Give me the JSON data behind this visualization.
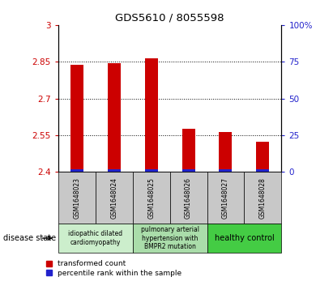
{
  "title": "GDS5610 / 8055598",
  "samples": [
    "GSM1648023",
    "GSM1648024",
    "GSM1648025",
    "GSM1648026",
    "GSM1648027",
    "GSM1648028"
  ],
  "red_values": [
    2.838,
    2.845,
    2.865,
    2.575,
    2.562,
    2.525
  ],
  "blue_pct": [
    2,
    2,
    2,
    2,
    2,
    2
  ],
  "ylim_left": [
    2.4,
    3.0
  ],
  "ylim_right": [
    0,
    100
  ],
  "yticks_left": [
    2.4,
    2.55,
    2.7,
    2.85,
    3.0
  ],
  "ytick_labels_left": [
    "2.4",
    "2.55",
    "2.7",
    "2.85",
    "3"
  ],
  "yticks_right": [
    0,
    25,
    50,
    75,
    100
  ],
  "ytick_labels_right": [
    "0",
    "25",
    "50",
    "75",
    "100%"
  ],
  "hlines": [
    2.55,
    2.7,
    2.85
  ],
  "bar_width": 0.35,
  "red_color": "#cc0000",
  "blue_color": "#2222cc",
  "sample_bg_color": "#c8c8c8",
  "disease_groups": [
    {
      "label": "idiopathic dilated\ncardiomyopathy",
      "start": 0,
      "end": 2,
      "color": "#cceecc"
    },
    {
      "label": "pulmonary arterial\nhypertension with\nBMPR2 mutation",
      "start": 2,
      "end": 4,
      "color": "#aaddaa"
    },
    {
      "label": "healthy control",
      "start": 4,
      "end": 6,
      "color": "#44cc44"
    }
  ],
  "legend_red_label": "transformed count",
  "legend_blue_label": "percentile rank within the sample",
  "disease_state_label": "disease state",
  "background_color": "#ffffff",
  "plot_bg_color": "#ffffff",
  "tick_label_color_left": "#cc0000",
  "tick_label_color_right": "#2222cc"
}
